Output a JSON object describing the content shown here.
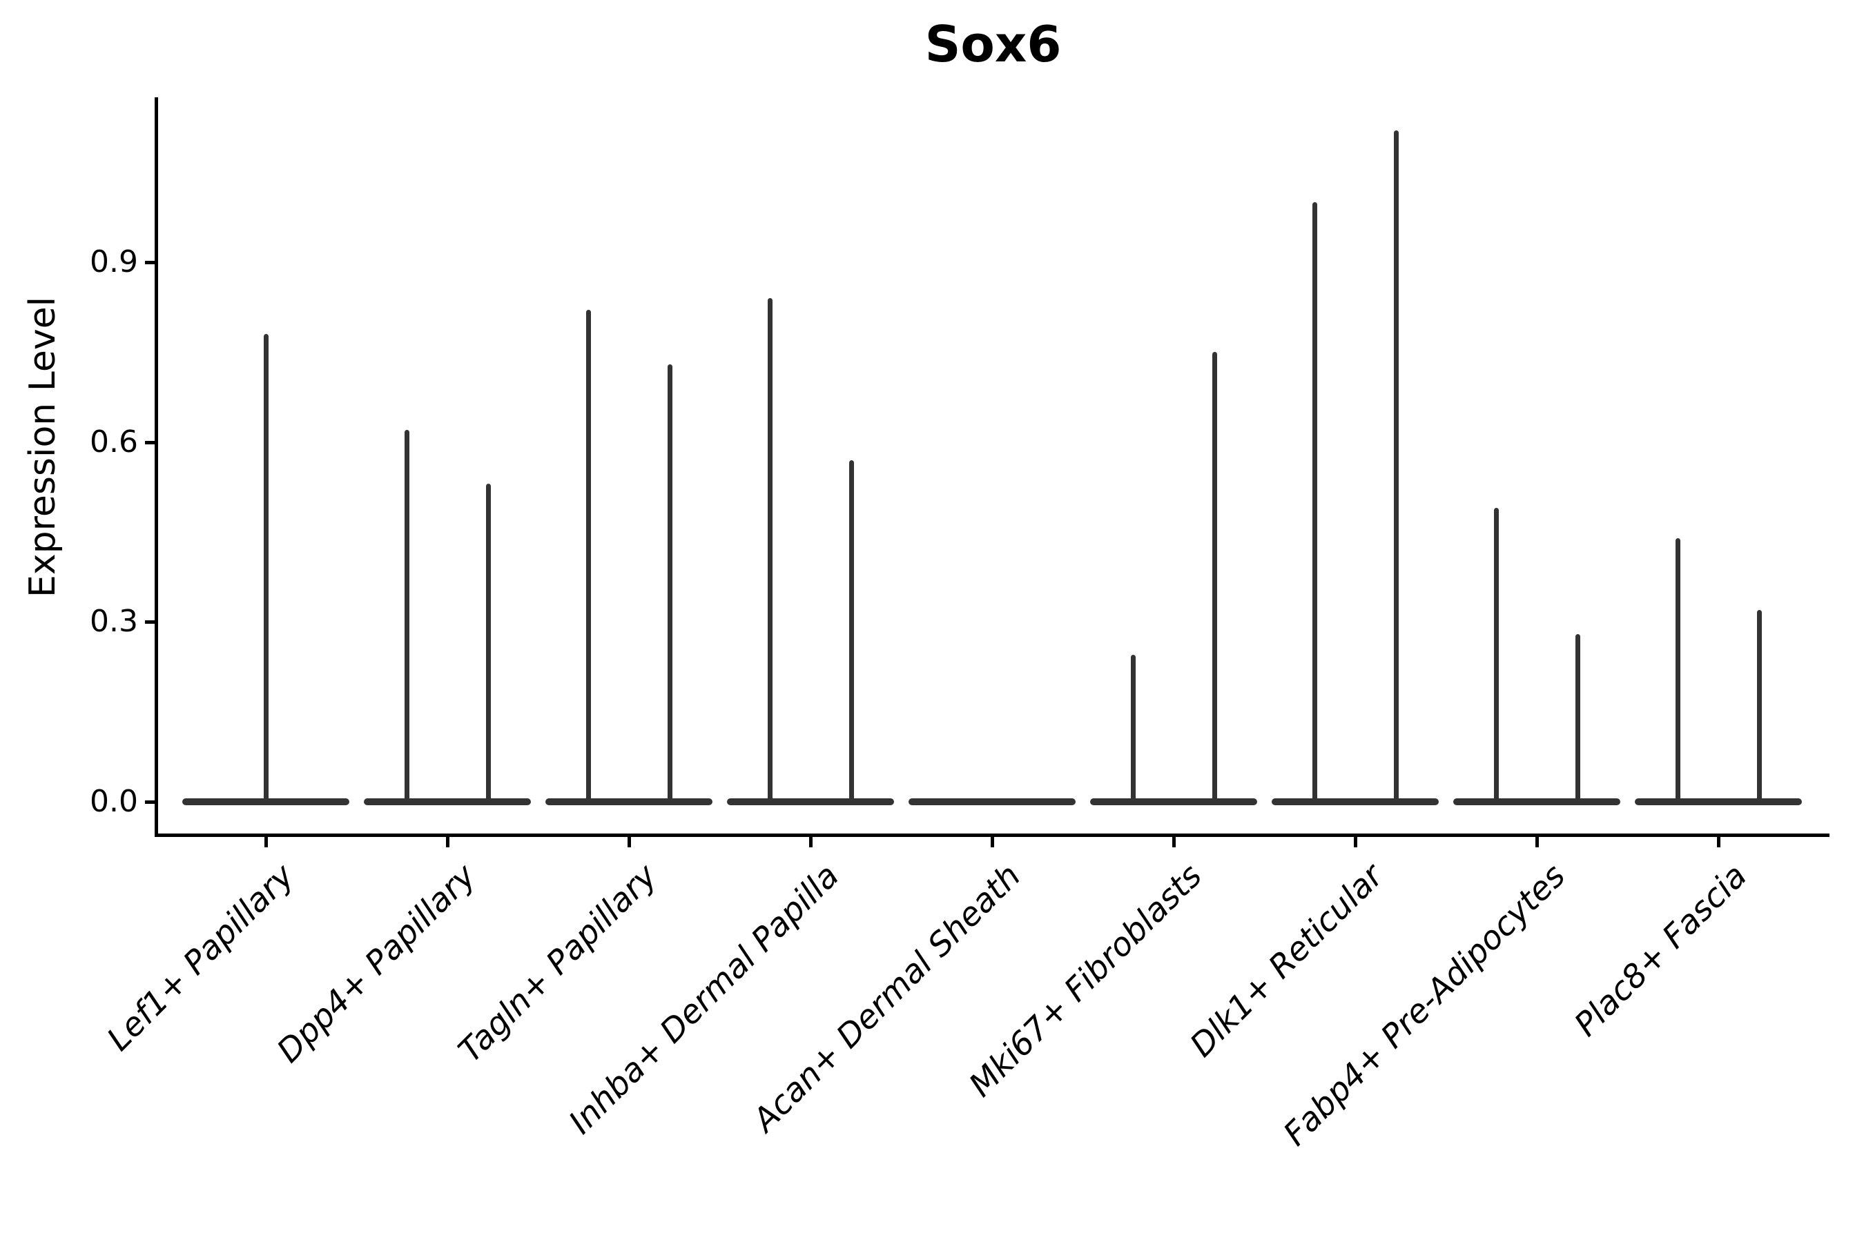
{
  "title": "Sox6",
  "chart_data": {
    "type": "violin",
    "title": "Sox6",
    "ylabel": "Expression Level",
    "xlabel": "",
    "grid": false,
    "legend": "none",
    "background": "#ffffff",
    "line_color": "#333333",
    "ylim": [
      0.0,
      1.17
    ],
    "ytick_labels": [
      "0.0",
      "0.3",
      "0.6",
      "0.9"
    ],
    "ytick_values": [
      0.0,
      0.3,
      0.6,
      0.9
    ],
    "categories": [
      "Lef1+ Papillary",
      "Dpp4+ Papillary",
      "Tagln+ Papillary",
      "Inhba+ Dermal Papilla",
      "Acan+ Dermal Sheath",
      "Mki67+ Fibroblasts",
      "Dlk1+ Reticular",
      "Fabp4+ Pre-Adipocytes",
      "Plac8+ Fascia"
    ],
    "violins": [
      {
        "category": "Lef1+ Papillary",
        "zero_inflated": true,
        "spikes": [
          {
            "pos": "center",
            "value": 0.78
          }
        ]
      },
      {
        "category": "Dpp4+ Papillary",
        "zero_inflated": true,
        "spikes": [
          {
            "pos": "left",
            "value": 0.62
          },
          {
            "pos": "right",
            "value": 0.53
          }
        ]
      },
      {
        "category": "Tagln+ Papillary",
        "zero_inflated": true,
        "spikes": [
          {
            "pos": "left",
            "value": 0.82
          },
          {
            "pos": "right",
            "value": 0.73
          }
        ]
      },
      {
        "category": "Inhba+ Dermal Papilla",
        "zero_inflated": true,
        "spikes": [
          {
            "pos": "left",
            "value": 0.84
          },
          {
            "pos": "right",
            "value": 0.57
          }
        ]
      },
      {
        "category": "Acan+ Dermal Sheath",
        "zero_inflated": true,
        "spikes": []
      },
      {
        "category": "Mki67+ Fibroblasts",
        "zero_inflated": true,
        "spikes": [
          {
            "pos": "left",
            "value": 0.245
          },
          {
            "pos": "right",
            "value": 0.75
          }
        ]
      },
      {
        "category": "Dlk1+ Reticular",
        "zero_inflated": true,
        "spikes": [
          {
            "pos": "left",
            "value": 1.0
          },
          {
            "pos": "right",
            "value": 1.12
          }
        ]
      },
      {
        "category": "Fabp4+ Pre-Adipocytes",
        "zero_inflated": true,
        "spikes": [
          {
            "pos": "left",
            "value": 0.49
          },
          {
            "pos": "right",
            "value": 0.28
          }
        ]
      },
      {
        "category": "Plac8+ Fascia",
        "zero_inflated": true,
        "spikes": [
          {
            "pos": "left",
            "value": 0.44
          },
          {
            "pos": "right",
            "value": 0.32
          }
        ]
      }
    ]
  }
}
